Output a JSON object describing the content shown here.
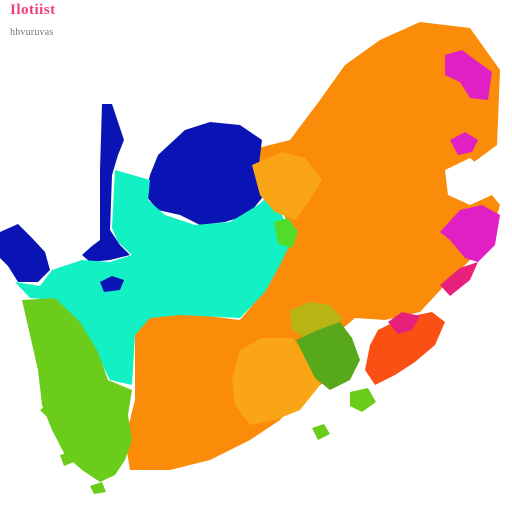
{
  "map": {
    "title": "Ilotiist",
    "subtitle": "hhvuruvas"
  },
  "colors": {
    "background": "#ffffff",
    "orange": "#fa8c0a",
    "light_orange": "#faa516",
    "cyan": "#12f0c4",
    "green": "#6ccc1c",
    "dark_green": "#58a81c",
    "olive": "#b8b414",
    "navy": "#0a14b4",
    "magenta": "#e020c4",
    "red_orange": "#fa5014",
    "pink": "#e8207c",
    "lime": "#50dc28"
  }
}
